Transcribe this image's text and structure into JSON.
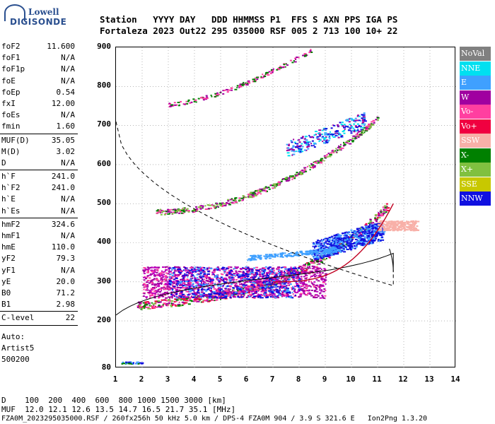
{
  "logo": {
    "line1": "Lowell",
    "line2": "DIGISONDE"
  },
  "header": {
    "labels": "Station   YYYY DAY   DDD HHMMSS P1  FFS S AXN PPS IGA PS",
    "values": "Fortaleza 2023 Out22 295 035000 RSF 005 2 713 100 10+ 22"
  },
  "params_groups": [
    [
      [
        "foF2",
        "11.600"
      ],
      [
        "foF1",
        "N/A"
      ],
      [
        "foF1p",
        "N/A"
      ],
      [
        "foE",
        "N/A"
      ],
      [
        "foEp",
        "0.54"
      ],
      [
        "fxI",
        "12.00"
      ],
      [
        "foEs",
        "N/A"
      ],
      [
        "fmin",
        "1.60"
      ]
    ],
    [
      [
        "MUF(D)",
        "35.05"
      ],
      [
        "M(D)",
        "3.02"
      ],
      [
        "D",
        "N/A"
      ]
    ],
    [
      [
        "h`F",
        "241.0"
      ],
      [
        "h`F2",
        "241.0"
      ],
      [
        "h`E",
        "N/A"
      ],
      [
        "h`Es",
        "N/A"
      ]
    ],
    [
      [
        "hmF2",
        "324.6"
      ],
      [
        "hmF1",
        "N/A"
      ],
      [
        "hmE",
        "110.0"
      ],
      [
        "yF2",
        "79.3"
      ],
      [
        "yF1",
        "N/A"
      ],
      [
        "yE",
        "20.0"
      ],
      [
        "B0",
        "71.2"
      ],
      [
        "B1",
        "2.98"
      ]
    ],
    [
      [
        "C-level",
        "22"
      ]
    ]
  ],
  "auto": {
    "line1": "Auto:",
    "line2": "Artist5",
    "line3": "500200"
  },
  "y_ticks": [
    "900",
    "800",
    "700",
    "600",
    "500",
    "400",
    "300",
    "200",
    "80"
  ],
  "x_ticks": [
    "1",
    "2",
    "3",
    "4",
    "5",
    "6",
    "7",
    "8",
    "9",
    "10",
    "11",
    "12",
    "13",
    "14"
  ],
  "legend": [
    {
      "label": "NoVal",
      "color": "#808080"
    },
    {
      "label": "NNE",
      "color": "#00e0f0"
    },
    {
      "label": "E",
      "color": "#3fa0ff"
    },
    {
      "label": "W",
      "color": "#a000a0"
    },
    {
      "label": "Vo-",
      "color": "#ff3fa0"
    },
    {
      "label": "Vo+",
      "color": "#f00040"
    },
    {
      "label": "SSW",
      "color": "#f8b0a8"
    },
    {
      "label": "X-",
      "color": "#008000"
    },
    {
      "label": "X+",
      "color": "#80c040"
    },
    {
      "label": "SSE",
      "color": "#c8c800"
    },
    {
      "label": "NNW",
      "color": "#1010e0"
    }
  ],
  "footer": {
    "line1": "D    100  200  400  600  800 1000 1500 3000 [km]",
    "line2": "MUF  12.0 12.1 12.6 13.5 14.7 16.5 21.7 35.1 [MHz]",
    "line3": "FZA0M_2023295035000.RSF / 260fx256h 50 kHz 5.0 km / DPS-4 FZA0M 904 / 3.9 S 321.6 E   Ion2Png 1.3.20"
  }
}
